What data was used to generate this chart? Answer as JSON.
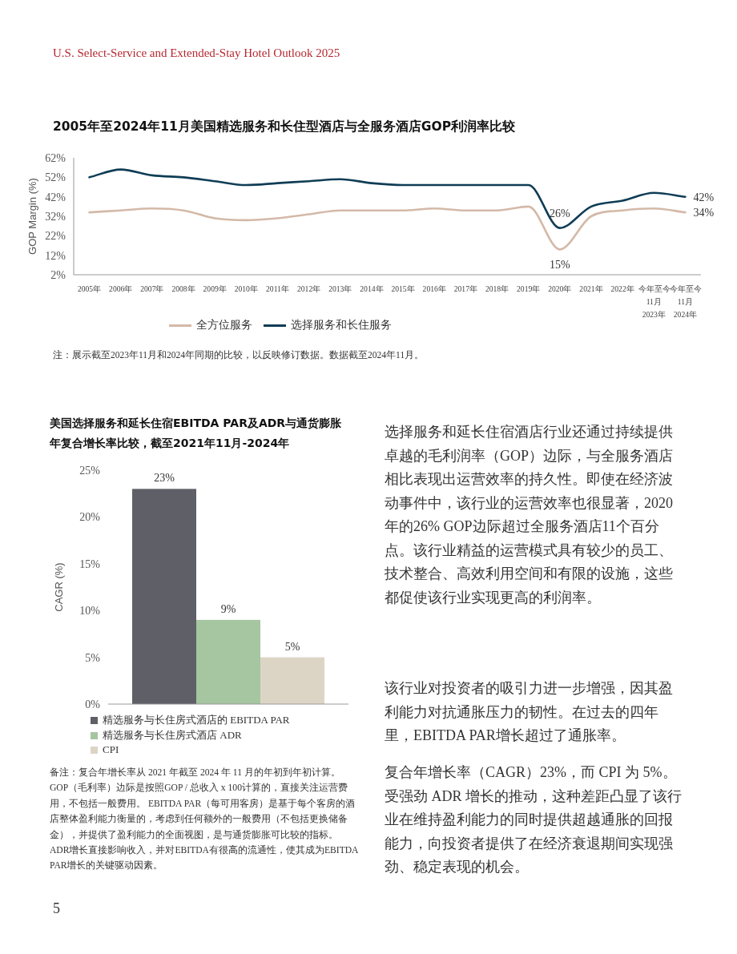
{
  "chart_data": [
    {
      "type": "line",
      "title": "2005年至2024年11月美国精选服务和长住型酒店与全服务酒店GOP利润率比较",
      "ylabel": "GOP Margin (%)",
      "categories": [
        "2005年",
        "2006年",
        "2007年",
        "2008年",
        "2009年",
        "2010年",
        "2011年",
        "2012年",
        "2013年",
        "2014年",
        "2015年",
        "2016年",
        "2017年",
        "2018年",
        "2019年",
        "2020年",
        "2021年",
        "2022年",
        "今年至今 11月 2023年",
        "今年至今 11月 2024年"
      ],
      "series": [
        {
          "name": "全方位服务",
          "color": "#d4b9a8",
          "values": [
            34,
            35,
            36,
            35,
            31,
            30,
            31,
            33,
            35,
            35,
            35,
            36,
            35,
            35,
            37,
            15,
            32,
            35,
            36,
            34
          ],
          "value_labels": [
            null,
            null,
            null,
            null,
            null,
            null,
            null,
            null,
            null,
            null,
            null,
            null,
            null,
            null,
            null,
            "15%",
            null,
            null,
            null,
            "34%"
          ]
        },
        {
          "name": "选择服务和长住服务",
          "color": "#0f3d55",
          "values": [
            52,
            56,
            53,
            52,
            50,
            48,
            49,
            50,
            51,
            49,
            48,
            48,
            48,
            48,
            48,
            26,
            37,
            40,
            44,
            42
          ],
          "value_labels": [
            null,
            null,
            null,
            null,
            null,
            null,
            null,
            null,
            null,
            null,
            null,
            null,
            null,
            null,
            null,
            "26%",
            null,
            null,
            null,
            "42%"
          ]
        }
      ],
      "ylim": [
        2,
        62
      ],
      "yticks": [
        {
          "value": 2,
          "label": "2%"
        },
        {
          "value": 12,
          "label": "12%"
        },
        {
          "value": 22,
          "label": "22%"
        },
        {
          "value": 32,
          "label": "32%"
        },
        {
          "value": 42,
          "label": "42%"
        },
        {
          "value": 52,
          "label": "52%"
        },
        {
          "value": 62,
          "label": "62%"
        }
      ],
      "legend": "bottom",
      "annotations": [
        "注：展示截至2023年11月和2024年同期的比较，以反映修订数据。数据截至2024年11月。"
      ]
    },
    {
      "type": "bar",
      "title": "美国选择服务和延长住宿EBITDA PAR及ADR与通货膨胀年复合增长率比较，截至2021年11月-2024年",
      "ylabel": "CAGR (%)",
      "categories": [
        null,
        null,
        null
      ],
      "series": [
        {
          "name": "精选服务与长住房式酒店的 EBITDA PAR",
          "color": "#5f6067",
          "values": [
            23,
            null,
            null
          ],
          "value_labels": [
            "23%",
            null,
            null
          ]
        },
        {
          "name": "精选服务与长住房式酒店 ADR",
          "color": "#a6c5a1",
          "values": [
            null,
            9,
            null
          ],
          "value_labels": [
            null,
            "9%",
            null
          ]
        },
        {
          "name": "CPI",
          "color": "#dcd5c5",
          "values": [
            null,
            null,
            5
          ],
          "value_labels": [
            null,
            null,
            "5%"
          ]
        }
      ],
      "ylim": [
        0,
        25
      ],
      "yticks": [
        {
          "value": 0,
          "label": "0%"
        },
        {
          "value": 5,
          "label": "5%"
        },
        {
          "value": 10,
          "label": "10%"
        },
        {
          "value": 15,
          "label": "15%"
        },
        {
          "value": 20,
          "label": "20%"
        },
        {
          "value": 25,
          "label": "25%"
        }
      ],
      "legend": "bottom",
      "annotations": [
        "备注：复合年增长率从 2021 年截至 2024 年 11 月的年初到年初计算。GOP（毛利率）边际是按照GOP / 总收入 x 100计算的，直接关注运营费用，不包括一般费用。 EBITDA PAR（每可用客房）是基于每个客房的酒店整体盈利能力衡量的，考虑到任何额外的一般费用（不包括更换储备金），并提供了盈利能力的全面视图，是与通货膨胀可比较的指标。 ADR增长直接影响收入，并对EBITDA有很高的流通性，使其成为EBITDA PAR增长的关键驱动因素。"
      ]
    },
    {
      "type": "other",
      "annotations": [
        "U.S. Select-Service and Extended-Stay Hotel Outlook 2025",
        "选择服务和延长住宿酒店行业还通过持续提供卓越的毛利润率（GOP）边际，与全服务酒店相比表现出运营效率的持久性。即使在经济波动事件中，该行业的运营效率也很显著，2020年的26% GOP边际超过全服务酒店11个百分点。该行业精益的运营模式具有较少的员工、技术整合、高效利用空间和有限的设施，这些都促使该行业实现更高的利润率。",
        "该行业对投资者的吸引力进一步增强，因其盈利能力对抗通胀压力的韧性。在过去的四年里，EBITDA PAR增长超过了通胀率。",
        "复合年增长率（CAGR）23%，而 CPI 为 5%。受强劲 ADR 增长的推动，这种差距凸显了该行业在维持盈利能力的同时提供超越通胀的回报能力，向投资者提供了在经济衰退期间实现强劲、稳定表现的机会。",
        "5"
      ]
    }
  ]
}
